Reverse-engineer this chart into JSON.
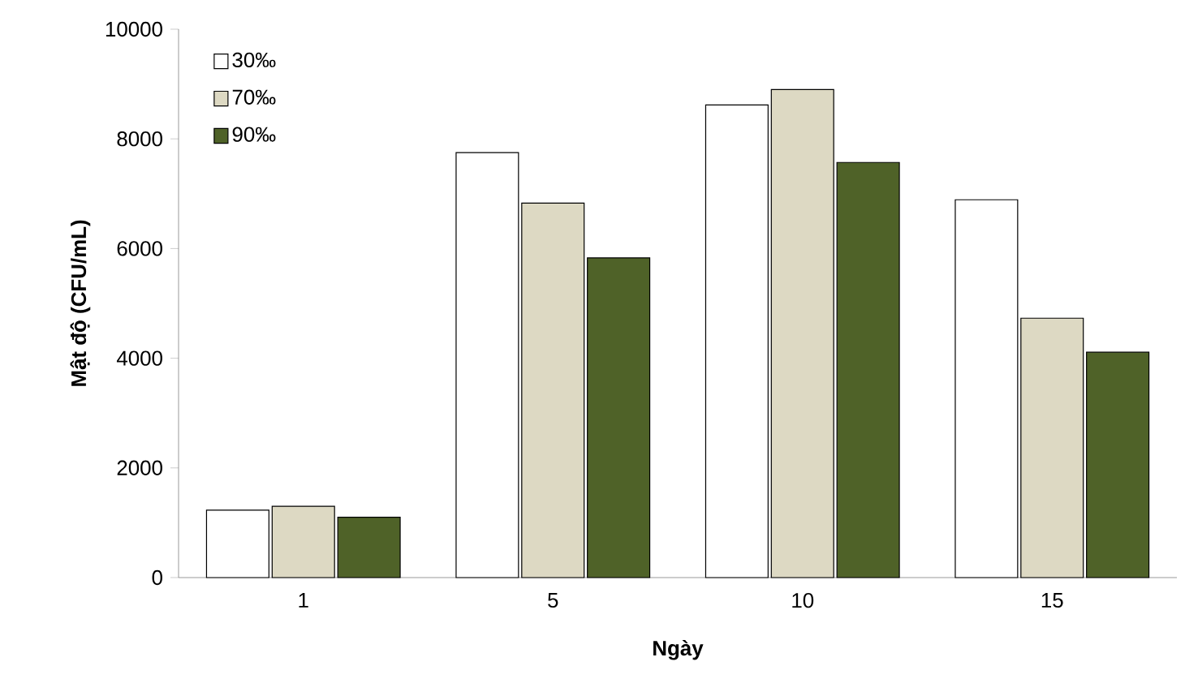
{
  "chart_data": {
    "type": "bar",
    "xlabel": "Ngày",
    "ylabel": "Mật độ (CFU/mL)",
    "categories": [
      "1",
      "5",
      "10",
      "15"
    ],
    "series": [
      {
        "name": "30‰",
        "color": "#ffffff",
        "values": [
          1230,
          7750,
          8620,
          6890
        ]
      },
      {
        "name": "70‰",
        "color": "#ddd9c3",
        "values": [
          1300,
          6830,
          8900,
          4730
        ]
      },
      {
        "name": "90‰",
        "color": "#4f6228",
        "values": [
          1100,
          5830,
          7570,
          4110
        ]
      }
    ],
    "ylim": [
      0,
      10000
    ],
    "yticks": [
      0,
      2000,
      4000,
      6000,
      8000,
      10000
    ],
    "legend": "top left",
    "grid": false
  }
}
